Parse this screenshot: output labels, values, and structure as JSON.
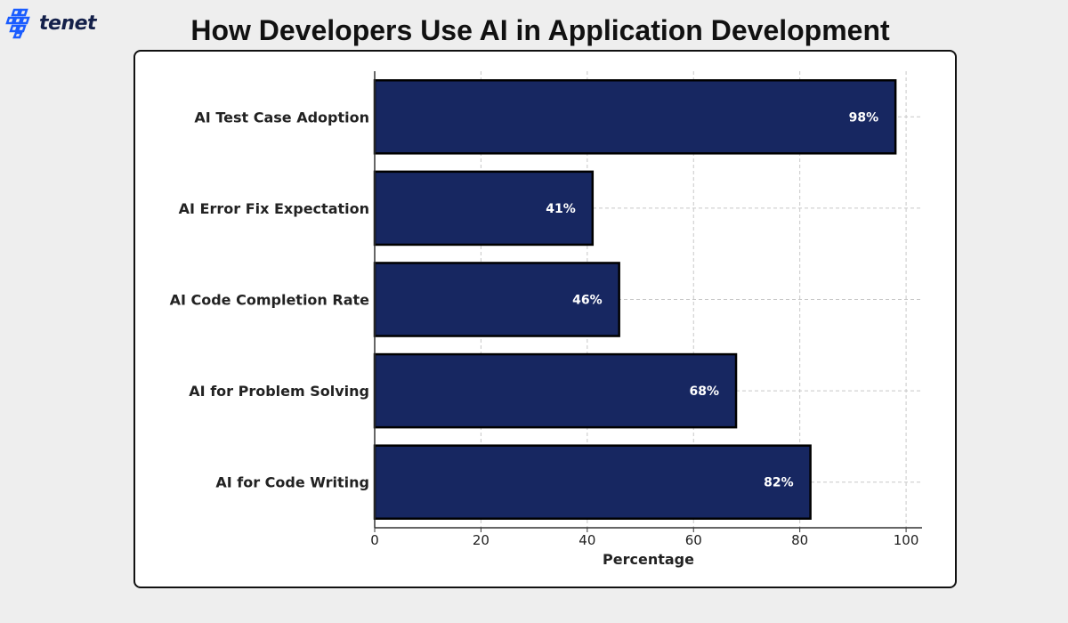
{
  "logo": {
    "text": "tenet",
    "color": "#1a5cff"
  },
  "chart_data": {
    "type": "bar",
    "orientation": "horizontal",
    "title": "How Developers Use AI in Application Development",
    "categories": [
      "AI Test Case Adoption",
      "AI Error Fix Expectation",
      "AI Code Completion Rate",
      "AI for Problem Solving",
      "AI for Code Writing"
    ],
    "values": [
      98,
      41,
      46,
      68,
      82
    ],
    "data_labels": [
      "98%",
      "41%",
      "46%",
      "68%",
      "82%"
    ],
    "xlabel": "Percentage",
    "ylabel": "",
    "xlim": [
      0,
      103
    ],
    "xticks": [
      "0",
      "20",
      "40",
      "60",
      "80",
      "100"
    ],
    "grid": true,
    "bar_color": "#172761",
    "bar_edge_color": "#000000"
  }
}
